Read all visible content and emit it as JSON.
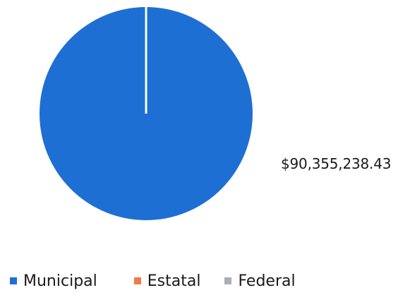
{
  "chart_data": {
    "type": "pie",
    "title": "",
    "categories": [
      "Municipal",
      "Estatal",
      "Federal"
    ],
    "values": [
      90355238.43,
      0,
      0
    ],
    "colors": [
      "#1e6fd4",
      "#f07a4a",
      "#a9aeb8"
    ],
    "data_labels": [
      "$90,355,238.43"
    ],
    "legend": {
      "position": "bottom",
      "entries": [
        "Municipal",
        "Estatal",
        "Federal"
      ]
    }
  }
}
